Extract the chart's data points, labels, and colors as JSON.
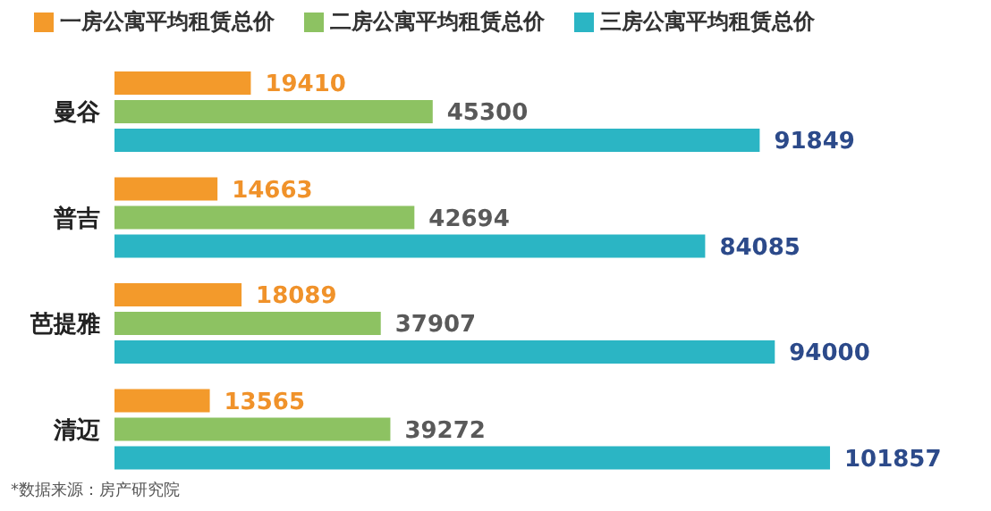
{
  "chart_data": {
    "type": "bar",
    "orientation": "horizontal",
    "categories": [
      "曼谷",
      "普吉",
      "芭提雅",
      "清迈"
    ],
    "series": [
      {
        "name": "一房公寓平均租赁总价",
        "color": "#f39a2b",
        "values": [
          19410,
          14663,
          18089,
          13565
        ]
      },
      {
        "name": "二房公寓平均租赁总价",
        "color": "#8dc262",
        "values": [
          45300,
          42694,
          37907,
          39272
        ]
      },
      {
        "name": "三房公寓平均租赁总价",
        "color": "#2bb5c4",
        "values": [
          91849,
          84085,
          94000,
          101857
        ]
      }
    ],
    "data_labels": true,
    "legend": "top",
    "annotations": [
      "*数据来源：房产研究院"
    ]
  }
}
